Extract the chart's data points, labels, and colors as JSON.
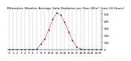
{
  "title": "Milwaukee Weather Average Solar Radiation per Hour W/m² (Last 24 Hours)",
  "x_values": [
    0,
    1,
    2,
    3,
    4,
    5,
    6,
    7,
    8,
    9,
    10,
    11,
    12,
    13,
    14,
    15,
    16,
    17,
    18,
    19,
    20,
    21,
    22,
    23
  ],
  "y_values": [
    0,
    0,
    0,
    0,
    0,
    0,
    2,
    5,
    80,
    150,
    280,
    420,
    510,
    480,
    380,
    250,
    130,
    40,
    5,
    0,
    0,
    0,
    0,
    0
  ],
  "line_color": "#ff0000",
  "line_style": "--",
  "marker": ".",
  "marker_color": "#000000",
  "background_color": "#ffffff",
  "grid_color": "#999999",
  "grid_style": "--",
  "ylim": [
    0,
    550
  ],
  "xlim": [
    -0.5,
    23.5
  ],
  "y_ticks": [
    0,
    100,
    200,
    300,
    400,
    500
  ],
  "title_fontsize": 3.2,
  "tick_fontsize": 2.8
}
